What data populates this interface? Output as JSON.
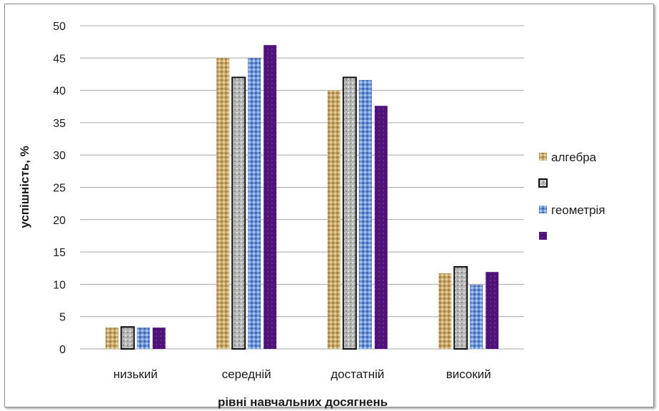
{
  "colors": {
    "algebra": "#c9a86c",
    "series2": "#b4b4b4",
    "geometry": "#6f96d6",
    "series4": "#4f1377",
    "grid": "#a6a6a6"
  },
  "chart_data": {
    "type": "bar",
    "title": "",
    "xlabel": "рівні навчальних досягнень",
    "ylabel": "успішність, %",
    "ylim": [
      0,
      50
    ],
    "yticks": [
      0,
      5,
      10,
      15,
      20,
      25,
      30,
      35,
      40,
      45,
      50
    ],
    "grid": true,
    "legend_position": "right",
    "categories": [
      "низький",
      "середній",
      "достатній",
      "високий"
    ],
    "series": [
      {
        "name": "алгебра",
        "values": [
          3.3,
          45,
          40,
          11.7
        ]
      },
      {
        "name": "",
        "values": [
          3.4,
          42,
          42,
          12.7
        ]
      },
      {
        "name": "геометрія",
        "values": [
          3.3,
          45,
          41.6,
          9.9
        ]
      },
      {
        "name": "",
        "values": [
          3.3,
          47,
          37.6,
          11.9
        ]
      }
    ]
  }
}
